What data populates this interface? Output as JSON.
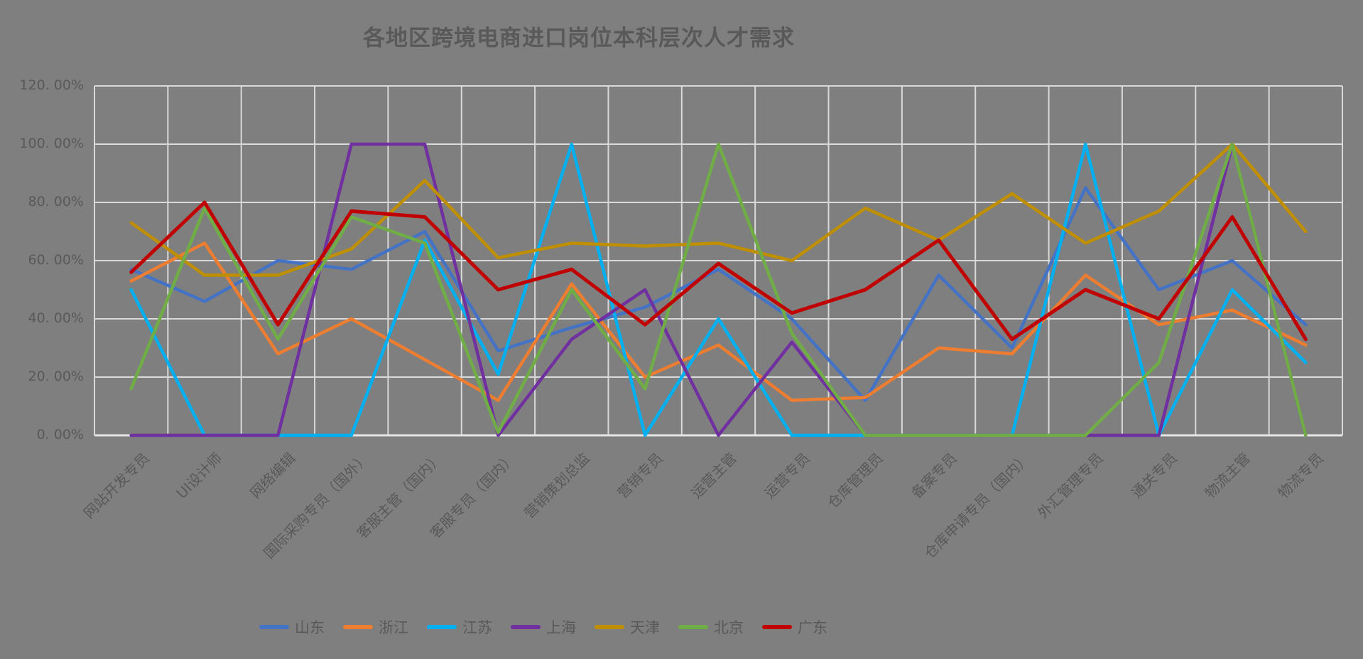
{
  "title": "各地区跨境电商进口岗位本科层次人才需求",
  "chart_data": {
    "type": "line",
    "title": "各地区跨境电商进口岗位本科层次人才需求",
    "xlabel": "",
    "ylabel": "",
    "ylim": [
      0,
      120
    ],
    "y_tick_step": 20,
    "grid": true,
    "legend_position": "bottom",
    "background_color": "#7F7F7F",
    "grid_color": "#D9D9D9",
    "text_color": "#595959",
    "y_ticks": [
      "0. 00%",
      "20. 00%",
      "40. 00%",
      "60. 00%",
      "80. 00%",
      "100. 00%",
      "120. 00%"
    ],
    "categories": [
      "网站开发专员",
      "UI设计师",
      "网络编辑",
      "国际采购专员（国外）",
      "客服主管（国内）",
      "客服专员（国内）",
      "营销策划总监",
      "营销专员",
      "运营主管",
      "运营专员",
      "仓库管理员",
      "备案专员",
      "仓库申请专员（国内）",
      "外汇管理专员",
      "通关专员",
      "物流主管",
      "物流专员"
    ],
    "series": [
      {
        "name": "山东",
        "color": "#4472C4",
        "values": [
          57,
          46,
          60,
          57,
          70,
          29,
          37,
          44,
          57,
          40,
          12,
          55,
          30,
          85,
          50,
          60,
          38
        ]
      },
      {
        "name": "浙江",
        "color": "#ED7D31",
        "values": [
          53,
          66,
          28,
          40,
          26,
          12,
          52,
          20,
          31,
          12,
          13,
          30,
          28,
          55,
          38,
          43,
          31
        ]
      },
      {
        "name": "江苏",
        "color": "#00B0F0",
        "values": [
          50,
          0,
          0,
          0,
          67,
          21,
          100,
          0,
          40,
          0,
          0,
          0,
          0,
          100,
          0,
          50,
          25
        ]
      },
      {
        "name": "上海",
        "color": "#7030A0",
        "values": [
          0,
          0,
          0,
          100,
          100,
          0,
          33,
          50,
          0,
          32,
          0,
          0,
          0,
          0,
          0,
          100,
          0
        ]
      },
      {
        "name": "天津",
        "color": "#BF8F00",
        "values": [
          73,
          55,
          55,
          64,
          87.5,
          61,
          66,
          65,
          66,
          60,
          78,
          67,
          83,
          66,
          77,
          100,
          70
        ]
      },
      {
        "name": "北京",
        "color": "#70AD47",
        "values": [
          16,
          78,
          33,
          75,
          66,
          1,
          50,
          16,
          100,
          35,
          0,
          0,
          0,
          0,
          25,
          100,
          0
        ]
      },
      {
        "name": "广东",
        "color": "#C00000",
        "values": [
          56,
          80,
          38,
          77,
          75,
          50,
          57,
          38,
          59,
          42,
          50,
          67,
          33,
          50,
          40,
          75,
          33
        ]
      }
    ]
  }
}
